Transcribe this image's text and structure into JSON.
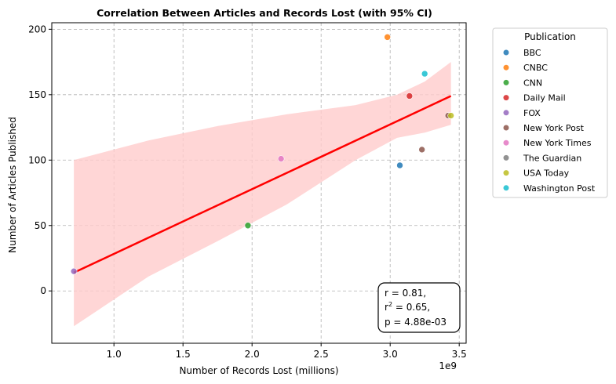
{
  "chart_data": {
    "type": "scatter",
    "title": "Correlation Between Articles and Records Lost (with 95% CI)",
    "xlabel": "Number of Records Lost (millions)",
    "ylabel": "Number of Articles Published",
    "x_offset_label": "1e9",
    "xlim": [
      0.55,
      3.55
    ],
    "ylim": [
      -40,
      205
    ],
    "x_ticks": [
      1.0,
      1.5,
      2.0,
      2.5,
      3.0,
      3.5
    ],
    "x_tick_labels": [
      "1.0",
      "1.5",
      "2.0",
      "2.5",
      "3.0",
      "3.5"
    ],
    "y_ticks": [
      0,
      50,
      100,
      150,
      200
    ],
    "y_tick_labels": [
      "0",
      "50",
      "100",
      "150",
      "200"
    ],
    "grid": true,
    "legend": {
      "title": "Publication",
      "placement": "outside-right",
      "entries": [
        {
          "name": "BBC",
          "color": "#1f77b4"
        },
        {
          "name": "CNBC",
          "color": "#ff7f0e"
        },
        {
          "name": "CNN",
          "color": "#2ca02c"
        },
        {
          "name": "Daily Mail",
          "color": "#d62728"
        },
        {
          "name": "FOX",
          "color": "#9467bd"
        },
        {
          "name": "New York Post",
          "color": "#8c564b"
        },
        {
          "name": "New York Times",
          "color": "#e377c2"
        },
        {
          "name": "The Guardian",
          "color": "#7f7f7f"
        },
        {
          "name": "USA Today",
          "color": "#bcbd22"
        },
        {
          "name": "Washington Post",
          "color": "#17becf"
        }
      ]
    },
    "points": [
      {
        "publication": "BBC",
        "x": 3.07,
        "y": 96
      },
      {
        "publication": "CNBC",
        "x": 2.98,
        "y": 194
      },
      {
        "publication": "CNN",
        "x": 1.97,
        "y": 50
      },
      {
        "publication": "Daily Mail",
        "x": 3.14,
        "y": 149
      },
      {
        "publication": "FOX",
        "x": 0.71,
        "y": 15
      },
      {
        "publication": "New York Post",
        "x": 3.23,
        "y": 108
      },
      {
        "publication": "New York Post",
        "x": 3.42,
        "y": 134
      },
      {
        "publication": "New York Times",
        "x": 2.21,
        "y": 101
      },
      {
        "publication": "USA Today",
        "x": 3.44,
        "y": 134
      },
      {
        "publication": "Washington Post",
        "x": 3.25,
        "y": 166
      }
    ],
    "regression": {
      "color": "#ff0000",
      "line": [
        [
          0.71,
          14
        ],
        [
          3.44,
          149
        ]
      ],
      "ci_color": "#ffcccc",
      "ci_upper": [
        [
          0.71,
          100
        ],
        [
          1.25,
          115
        ],
        [
          1.75,
          126
        ],
        [
          2.25,
          135
        ],
        [
          2.75,
          142
        ],
        [
          3.05,
          150
        ],
        [
          3.25,
          160
        ],
        [
          3.44,
          175
        ]
      ],
      "ci_lower": [
        [
          0.71,
          -27
        ],
        [
          1.25,
          11
        ],
        [
          1.75,
          38
        ],
        [
          2.25,
          66
        ],
        [
          2.75,
          100
        ],
        [
          3.05,
          117
        ],
        [
          3.25,
          121
        ],
        [
          3.44,
          127
        ]
      ]
    },
    "annotation": {
      "line1": "r = 0.81,",
      "line2_prefix": "r",
      "line2_sup": "2",
      "line2_suffix": " = 0.65,",
      "line3": "p = 4.88e-03"
    }
  }
}
